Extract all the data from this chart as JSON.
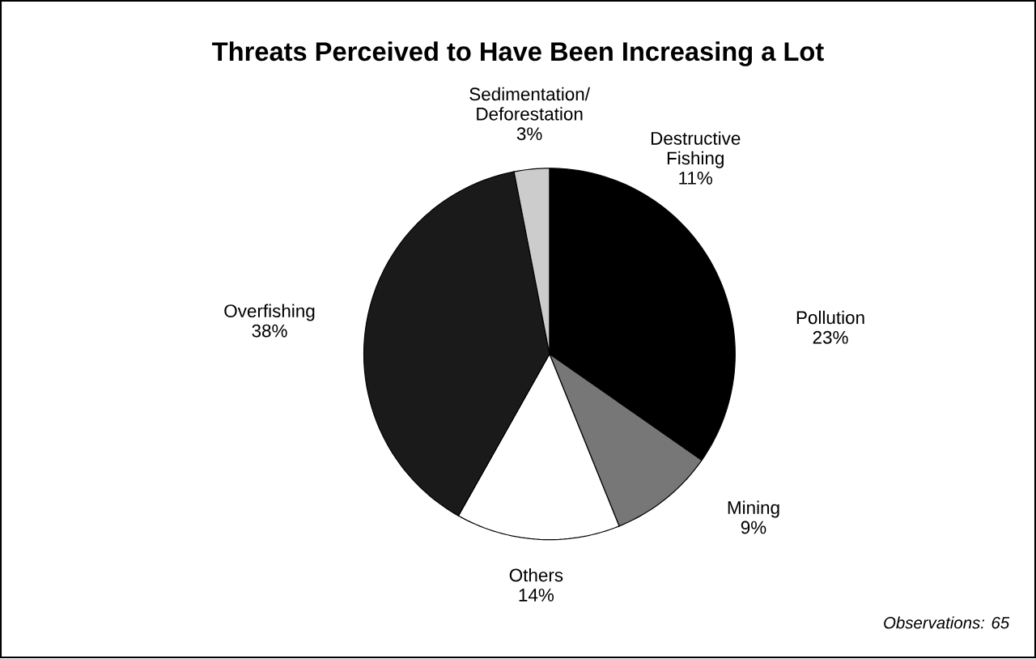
{
  "chart_data": {
    "type": "pie",
    "title": "Threats Perceived to Have Been Increasing a Lot",
    "categories": [
      "Destructive Fishing",
      "Pollution",
      "Mining",
      "Others",
      "Overfishing",
      "Sedimentation/ Deforestation"
    ],
    "values": [
      11,
      23,
      9,
      14,
      38,
      3
    ],
    "value_labels": [
      "11%",
      "23%",
      "9%",
      "14%",
      "38%",
      "3%"
    ],
    "colors": [
      "#000000",
      "#000000",
      "#777777",
      "#ffffff",
      "#1a1a1a",
      "#cccccc"
    ],
    "annotations": [
      "Observations: 65"
    ]
  }
}
